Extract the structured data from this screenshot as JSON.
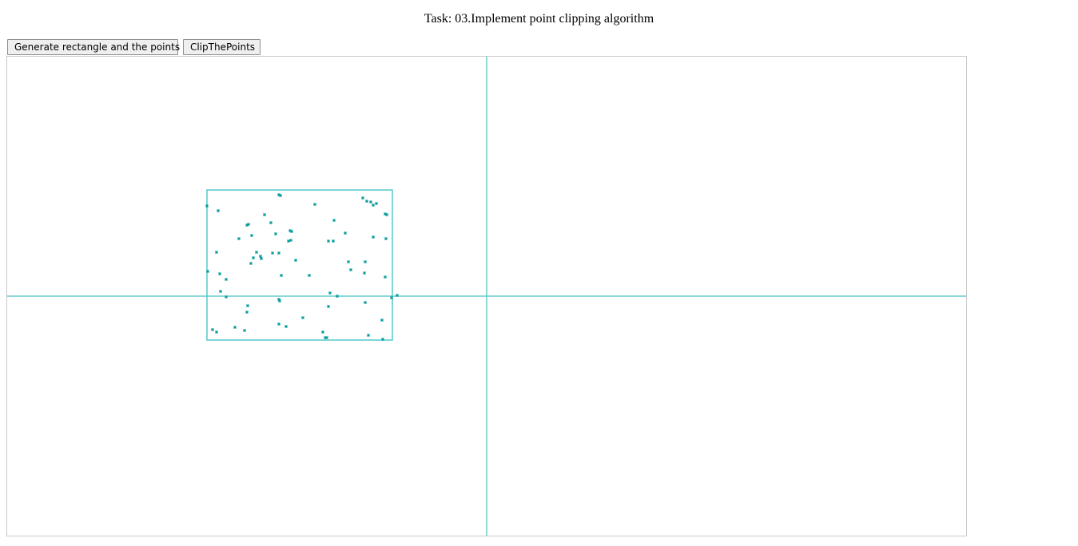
{
  "header": {
    "title": "Task: 03.Implement point clipping algorithm"
  },
  "toolbar": {
    "generate_label": "Generate rectangle and the points",
    "clip_label": "ClipThePoints"
  },
  "colors": {
    "axis": "#66cccc",
    "rectangle": "#55c8c8",
    "points": "#009999",
    "canvas_border": "#c8c8c8"
  },
  "scene": {
    "clip_rectangle": {
      "x_min": -350,
      "x_max": -118,
      "y_min": -55,
      "y_max": 133
    },
    "points": [
      [
        -350,
        113
      ],
      [
        -336,
        107
      ],
      [
        -260,
        127
      ],
      [
        -258,
        126
      ],
      [
        -215,
        115
      ],
      [
        -155,
        123
      ],
      [
        -150,
        119
      ],
      [
        -145,
        118
      ],
      [
        -142,
        114
      ],
      [
        -138,
        116
      ],
      [
        -127,
        103
      ],
      [
        -125,
        102
      ],
      [
        -191,
        95
      ],
      [
        -278,
        102
      ],
      [
        -300,
        89
      ],
      [
        -298,
        90
      ],
      [
        -270,
        92
      ],
      [
        -246,
        82
      ],
      [
        -245,
        70
      ],
      [
        -248,
        69
      ],
      [
        -294,
        76
      ],
      [
        -264,
        78
      ],
      [
        -310,
        72
      ],
      [
        -244,
        81
      ],
      [
        -177,
        79
      ],
      [
        -198,
        69
      ],
      [
        -192,
        69
      ],
      [
        -142,
        74
      ],
      [
        -126,
        72
      ],
      [
        -260,
        54
      ],
      [
        -288,
        55
      ],
      [
        -283,
        50
      ],
      [
        -338,
        55
      ],
      [
        -268,
        54
      ],
      [
        -239,
        45
      ],
      [
        -292,
        48
      ],
      [
        -295,
        41
      ],
      [
        -282,
        47
      ],
      [
        -173,
        43
      ],
      [
        -152,
        43
      ],
      [
        -170,
        33
      ],
      [
        -349,
        31
      ],
      [
        -334,
        28
      ],
      [
        -326,
        21
      ],
      [
        -257,
        26
      ],
      [
        -153,
        29
      ],
      [
        -127,
        24
      ],
      [
        -222,
        26
      ],
      [
        -112,
        1
      ],
      [
        -333,
        6
      ],
      [
        -326,
        -1
      ],
      [
        -196,
        4
      ],
      [
        -187,
        0
      ],
      [
        -119,
        -2
      ],
      [
        -260,
        -4
      ],
      [
        -259,
        -6
      ],
      [
        -152,
        -8
      ],
      [
        -299,
        -12
      ],
      [
        -198,
        -13
      ],
      [
        -300,
        -20
      ],
      [
        -230,
        -27
      ],
      [
        -260,
        -35
      ],
      [
        -251,
        -38
      ],
      [
        -343,
        -42
      ],
      [
        -338,
        -45
      ],
      [
        -315,
        -39
      ],
      [
        -303,
        -43
      ],
      [
        -205,
        -45
      ],
      [
        -202,
        -52
      ],
      [
        -200,
        -52
      ],
      [
        -148,
        -49
      ],
      [
        -131,
        -30
      ],
      [
        -130,
        -54
      ]
    ]
  }
}
